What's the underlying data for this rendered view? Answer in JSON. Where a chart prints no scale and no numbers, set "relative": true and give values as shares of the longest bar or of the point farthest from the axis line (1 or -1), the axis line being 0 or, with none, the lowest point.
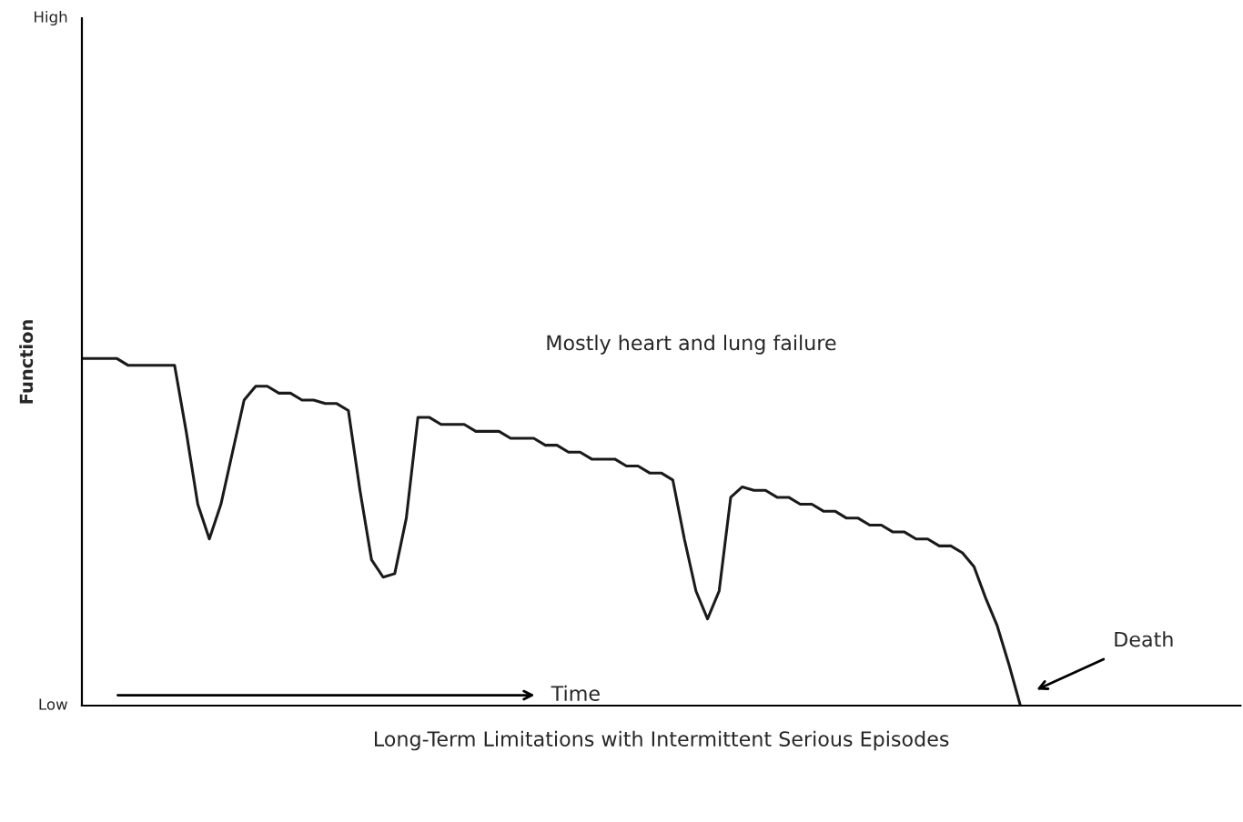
{
  "chart_data": {
    "type": "line",
    "xlabel": "Long-Term Limitations with Intermittent Serious Episodes",
    "ylabel": "Function",
    "categories": [
      null,
      null,
      null,
      null,
      null,
      null,
      null,
      null,
      null,
      null,
      null,
      null,
      null,
      null,
      null,
      null,
      null,
      null,
      null,
      null,
      null,
      null,
      null,
      null,
      null,
      null,
      null,
      null,
      null,
      null,
      null,
      null,
      null,
      null,
      null,
      null,
      null,
      null,
      null,
      null,
      null,
      null,
      null,
      null,
      null,
      null,
      null,
      null,
      null,
      null,
      null,
      null,
      null,
      null,
      null,
      null,
      null,
      null,
      null,
      null,
      null,
      null,
      null,
      null,
      null,
      null,
      null,
      null,
      null,
      null,
      null,
      null,
      null,
      null,
      null,
      null,
      null,
      null,
      null,
      null,
      null,
      null,
      null,
      null,
      null,
      null,
      null,
      null,
      null,
      null,
      null,
      null,
      null,
      null,
      null,
      null,
      null,
      null,
      null,
      null,
      null
    ],
    "series": [
      {
        "color": "#1a1a1a",
        "values": [
          1.0,
          1.0,
          1.0,
          1.0,
          0.98,
          0.98,
          0.98,
          0.98,
          0.98,
          0.79,
          0.58,
          0.48,
          0.58,
          0.73,
          0.88,
          0.92,
          0.92,
          0.9,
          0.9,
          0.88,
          0.88,
          0.87,
          0.87,
          0.85,
          0.62,
          0.42,
          0.37,
          0.38,
          0.54,
          0.83,
          0.83,
          0.81,
          0.81,
          0.81,
          0.79,
          0.79,
          0.79,
          0.77,
          0.77,
          0.77,
          0.75,
          0.75,
          0.73,
          0.73,
          0.71,
          0.71,
          0.71,
          0.69,
          0.69,
          0.67,
          0.67,
          0.65,
          0.48,
          0.33,
          0.25,
          0.33,
          0.6,
          0.63,
          0.62,
          0.62,
          0.6,
          0.6,
          0.58,
          0.58,
          0.56,
          0.56,
          0.54,
          0.54,
          0.52,
          0.52,
          0.5,
          0.5,
          0.48,
          0.48,
          0.46,
          0.46,
          0.44,
          0.4,
          0.31,
          0.23,
          0.12,
          0,
          null,
          null,
          null,
          null,
          null,
          null,
          null,
          null,
          null,
          null,
          null,
          null,
          null,
          null,
          null,
          null,
          null,
          null,
          null
        ]
      }
    ],
    "relative": true,
    "annotations": [
      "Mostly heart and lung failure",
      "Time",
      "Death",
      "High",
      "Low"
    ]
  }
}
